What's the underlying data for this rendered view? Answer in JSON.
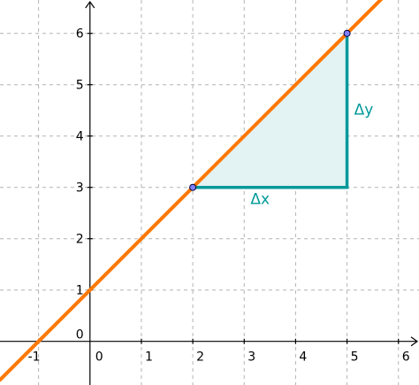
{
  "chart_data": {
    "type": "line",
    "title": "",
    "xlabel": "",
    "ylabel": "",
    "xlim": [
      -1.75,
      6.4
    ],
    "ylim": [
      -0.85,
      6.65
    ],
    "grid": true,
    "x_ticks": [
      -1,
      0,
      1,
      2,
      3,
      4,
      5,
      6
    ],
    "y_ticks": [
      0,
      1,
      2,
      3,
      4,
      5,
      6
    ],
    "x_tick_labels": [
      "-1",
      "0",
      "1",
      "2",
      "3",
      "4",
      "5",
      "6"
    ],
    "y_tick_labels": [
      "0",
      "1",
      "2",
      "3",
      "4",
      "5",
      "6"
    ],
    "line": {
      "slope": 1,
      "intercept": 1,
      "color": "#ff7700"
    },
    "points": [
      {
        "x": 2,
        "y": 3
      },
      {
        "x": 5,
        "y": 6
      }
    ],
    "triangle": {
      "vertices": [
        [
          2,
          3
        ],
        [
          5,
          3
        ],
        [
          5,
          6
        ]
      ],
      "fill": "#e3f2f3",
      "stroke": "#00999a"
    },
    "annotations": [
      {
        "text": "Δx",
        "x": 3.5,
        "y": 3
      },
      {
        "text": "Δy",
        "x": 5,
        "y": 4.5
      }
    ],
    "colors": {
      "point_fill": "#7f7fff",
      "axis": "#000000",
      "grid": "#b4b4b4"
    }
  }
}
